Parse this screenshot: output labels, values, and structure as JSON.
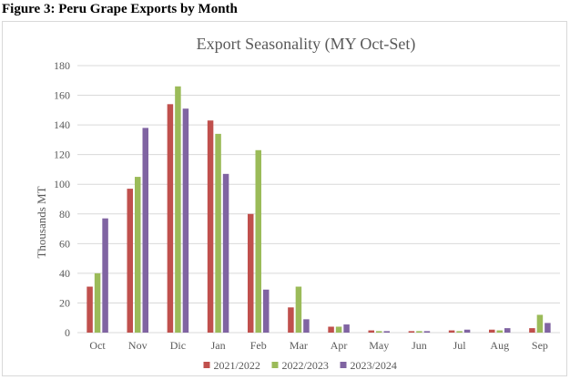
{
  "figure_caption": "Figure 3: Peru Grape Exports by Month",
  "chart_data": {
    "type": "bar",
    "title": "Export Seasonality (MY Oct-Set)",
    "xlabel": "",
    "ylabel": "Thousands MT",
    "ylim": [
      0,
      180
    ],
    "yticks": [
      0,
      20,
      40,
      60,
      80,
      100,
      120,
      140,
      160,
      180
    ],
    "grid": true,
    "legend_position": "bottom",
    "categories": [
      "Oct",
      "Nov",
      "Dic",
      "Jan",
      "Feb",
      "Mar",
      "Apr",
      "May",
      "Jun",
      "Jul",
      "Aug",
      "Sep"
    ],
    "series": [
      {
        "name": "2021/2022",
        "color": "#c0504d",
        "values": [
          31,
          97,
          154,
          143,
          80,
          17,
          4,
          1.5,
          1,
          1.5,
          2,
          3
        ]
      },
      {
        "name": "2022/2023",
        "color": "#9bbb59",
        "values": [
          40,
          105,
          166,
          134,
          123,
          31,
          4,
          1,
          1,
          1,
          1.5,
          12
        ]
      },
      {
        "name": "2023/2024",
        "color": "#8064a2",
        "values": [
          77,
          138,
          151,
          107,
          29,
          9,
          5.5,
          1,
          1,
          2,
          3,
          6.5
        ]
      }
    ]
  }
}
